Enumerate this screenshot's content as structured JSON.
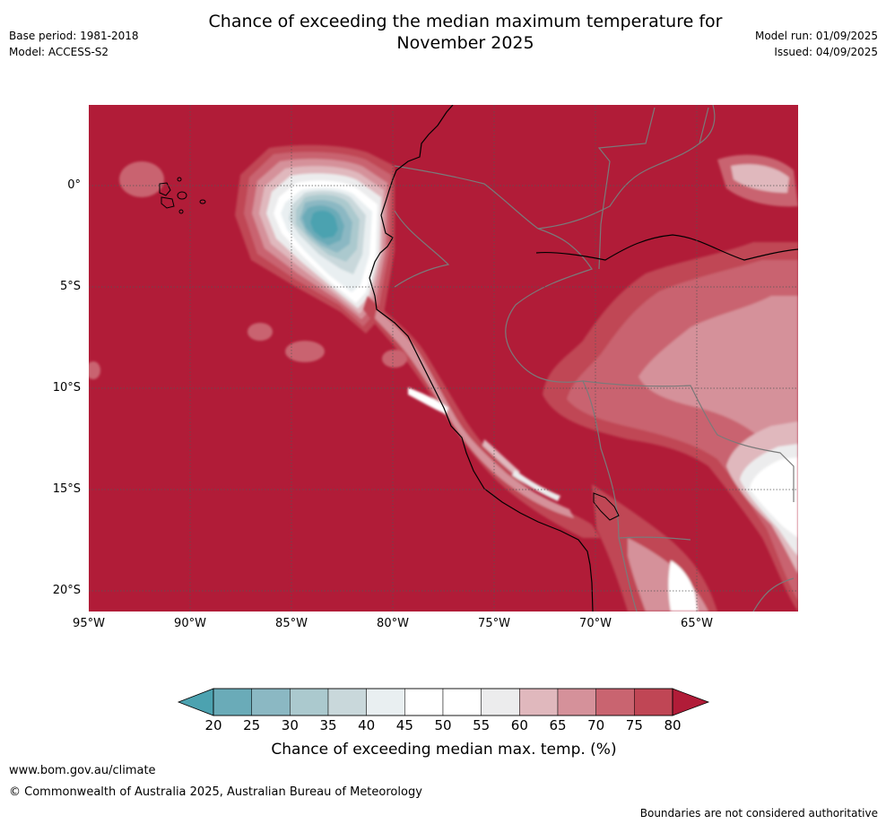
{
  "header": {
    "title_line1": "Chance of exceeding the median maximum temperature for",
    "title_line2": "November 2025",
    "base_period": "Base period: 1981-2018",
    "model": "Model: ACCESS-S2",
    "model_run": "Model run: 01/09/2025",
    "issued": "Issued: 04/09/2025"
  },
  "map": {
    "latitude_labels": [
      "0°",
      "5°S",
      "10°S",
      "15°S",
      "20°S"
    ],
    "longitude_labels": [
      "95°W",
      "90°W",
      "85°W",
      "80°W",
      "75°W",
      "70°W",
      "65°W"
    ],
    "extent": {
      "lon": [
        -95,
        -60
      ],
      "lat": [
        -21,
        4
      ]
    },
    "dominant_category": "80+",
    "colors": {
      "80+": "#b11c38",
      "75-80": "#c04655",
      "70-75": "#c96470",
      "65-70": "#d5919a",
      "60-65": "#e0b8bd",
      "55-60": "#ececed",
      "50-55": "#ffffff",
      "45-50": "#ffffff",
      "40-45": "#e9eff1",
      "35-40": "#c9d8db",
      "30-35": "#abc9ce",
      "25-30": "#8bb8c3",
      "20-25": "#6aabb8",
      "below-20": "#4ca2b0",
      "coastline": "#000000",
      "borders": "#808080"
    }
  },
  "colorbar": {
    "ticks": [
      "20",
      "25",
      "30",
      "35",
      "40",
      "45",
      "50",
      "55",
      "60",
      "65",
      "70",
      "75",
      "80"
    ],
    "colors": [
      "#6aabb8",
      "#8bb8c3",
      "#abc9ce",
      "#c9d8db",
      "#e9eff1",
      "#ffffff",
      "#ffffff",
      "#ececed",
      "#e0b8bd",
      "#d5919a",
      "#c96470",
      "#c04655"
    ],
    "low_extend_color": "#4ca2b0",
    "high_extend_color": "#b11c38",
    "label": "Chance of exceeding median max. temp. (%)"
  },
  "footer": {
    "website": "www.bom.gov.au/climate",
    "copyright": "© Commonwealth of Australia 2025, Australian Bureau of Meteorology",
    "disclaimer": "Boundaries are not considered authoritative"
  }
}
